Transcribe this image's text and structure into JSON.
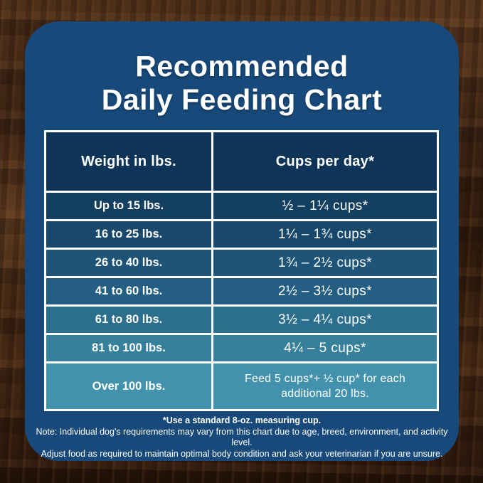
{
  "title": {
    "line1": "Recommended",
    "line2": "Daily Feeding Chart"
  },
  "table": {
    "headers": [
      "Weight in lbs.",
      "Cups per day*"
    ],
    "rows": [
      {
        "weight": "Up to 15 lbs.",
        "cups": "½ – 1¼ cups*",
        "bg": "#133f61"
      },
      {
        "weight": "16 to 25 lbs.",
        "cups": "1¼ – 1¾  cups*",
        "bg": "#18496c"
      },
      {
        "weight": "26 to 40 lbs.",
        "cups": "1¾ – 2½ cups*",
        "bg": "#1e5477"
      },
      {
        "weight": "41 to 60 lbs.",
        "cups": "2½ – 3½ cups*",
        "bg": "#245f83"
      },
      {
        "weight": "61 to 80 lbs.",
        "cups": "3½ – 4¼ cups*",
        "bg": "#2c6e8d"
      },
      {
        "weight": "81 to 100 lbs.",
        "cups": "4¼ – 5 cups*",
        "bg": "#36809c"
      },
      {
        "weight": "Over 100 lbs.",
        "cups": "Feed 5 cups*+ ½ cup* for each additional 20 lbs.",
        "bg": "#4392ad"
      }
    ]
  },
  "footer": {
    "cup_note": "*Use a standard 8-oz. measuring cup.",
    "note_line1": "Note: Individual dog's requirements may vary from this chart due to age, breed, environment, and activity level.",
    "note_line2": "Adjust food as required to maintain optimal body condition and ask your veterinarian if you are unsure."
  },
  "colors": {
    "card_bg": "#17497a",
    "header_bg": "#0e3557",
    "grid_border": "#ffffff",
    "text": "#ffffff",
    "row_gradient": [
      "#133f61",
      "#18496c",
      "#1e5477",
      "#245f83",
      "#2c6e8d",
      "#36809c",
      "#4392ad"
    ]
  },
  "chart_data": {
    "type": "table",
    "title": "Recommended Daily Feeding Chart",
    "columns": [
      "Weight in lbs.",
      "Cups per day*"
    ],
    "rows": [
      [
        "Up to 15 lbs.",
        "½ – 1¼ cups*"
      ],
      [
        "16 to 25 lbs.",
        "1¼ – 1¾ cups*"
      ],
      [
        "26 to 40 lbs.",
        "1¾ – 2½ cups*"
      ],
      [
        "41 to 60 lbs.",
        "2½ – 3½ cups*"
      ],
      [
        "61 to 80 lbs.",
        "3½ – 4¼ cups*"
      ],
      [
        "81 to 100 lbs.",
        "4¼ – 5 cups*"
      ],
      [
        "Over 100 lbs.",
        "Feed 5 cups*+ ½ cup* for each additional 20 lbs."
      ]
    ],
    "notes": [
      "*Use a standard 8-oz. measuring cup.",
      "Note: Individual dog's requirements may vary from this chart due to age, breed, environment, and activity level.",
      "Adjust food as required to maintain optimal body condition and ask your veterinarian if you are unsure."
    ],
    "layout_hints": {
      "row_color_gradient": "dark navy to teal, top to bottom",
      "grid": "white 3px borders"
    }
  }
}
